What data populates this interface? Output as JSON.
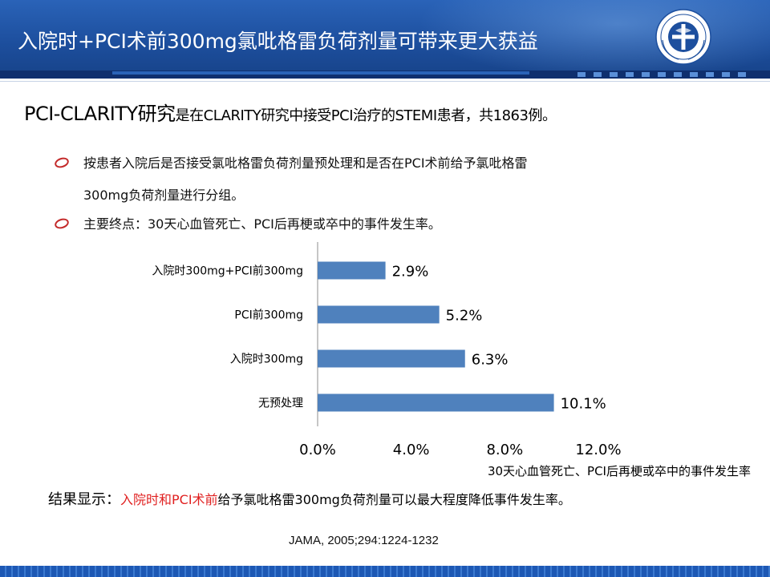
{
  "header": {
    "title": "入院时+PCI术前300mg氯吡格雷负荷剂量可带来更大获益",
    "logo_icon": "ministry-of-health-emblem-icon",
    "bg_color": "#1f56a8"
  },
  "intro": {
    "lead": "PCI-CLARITY研究",
    "rest": "是在CLARITY研究中接受PCI治疗的STEMI患者，共1863例。"
  },
  "bullets": [
    {
      "line1": "按患者入院后是否接受氯吡格雷负荷剂量预处理和是否在PCI术前给予氯吡格雷",
      "line2": "300mg负荷剂量进行分组。"
    },
    {
      "line1": "主要终点：30天心血管死亡、PCI后再梗或卒中的事件发生率。"
    }
  ],
  "chart_data": {
    "type": "bar",
    "orientation": "horizontal",
    "categories": [
      "入院时300mg+PCI前300mg",
      "PCI前300mg",
      "入院时300mg",
      "无预处理"
    ],
    "values": [
      2.9,
      5.2,
      6.3,
      10.1
    ],
    "data_labels": [
      "2.9%",
      "5.2%",
      "6.3%",
      "10.1%"
    ],
    "x_ticks": [
      "0.0%",
      "4.0%",
      "8.0%",
      "12.0%"
    ],
    "xlim": [
      0,
      12
    ],
    "xlabel": "30天心血管死亡、PCI后再梗或卒中的事件发生率",
    "bar_color": "#4f81bd",
    "grid": false
  },
  "conclusion": {
    "lead": "结果显示：",
    "highlight": "入院时和PCI术前",
    "rest": "给予氯吡格雷300mg负荷剂量可以最大程度降低事件发生率。",
    "highlight_color": "#e02020"
  },
  "citation": "JAMA, 2005;294:1224-1232"
}
